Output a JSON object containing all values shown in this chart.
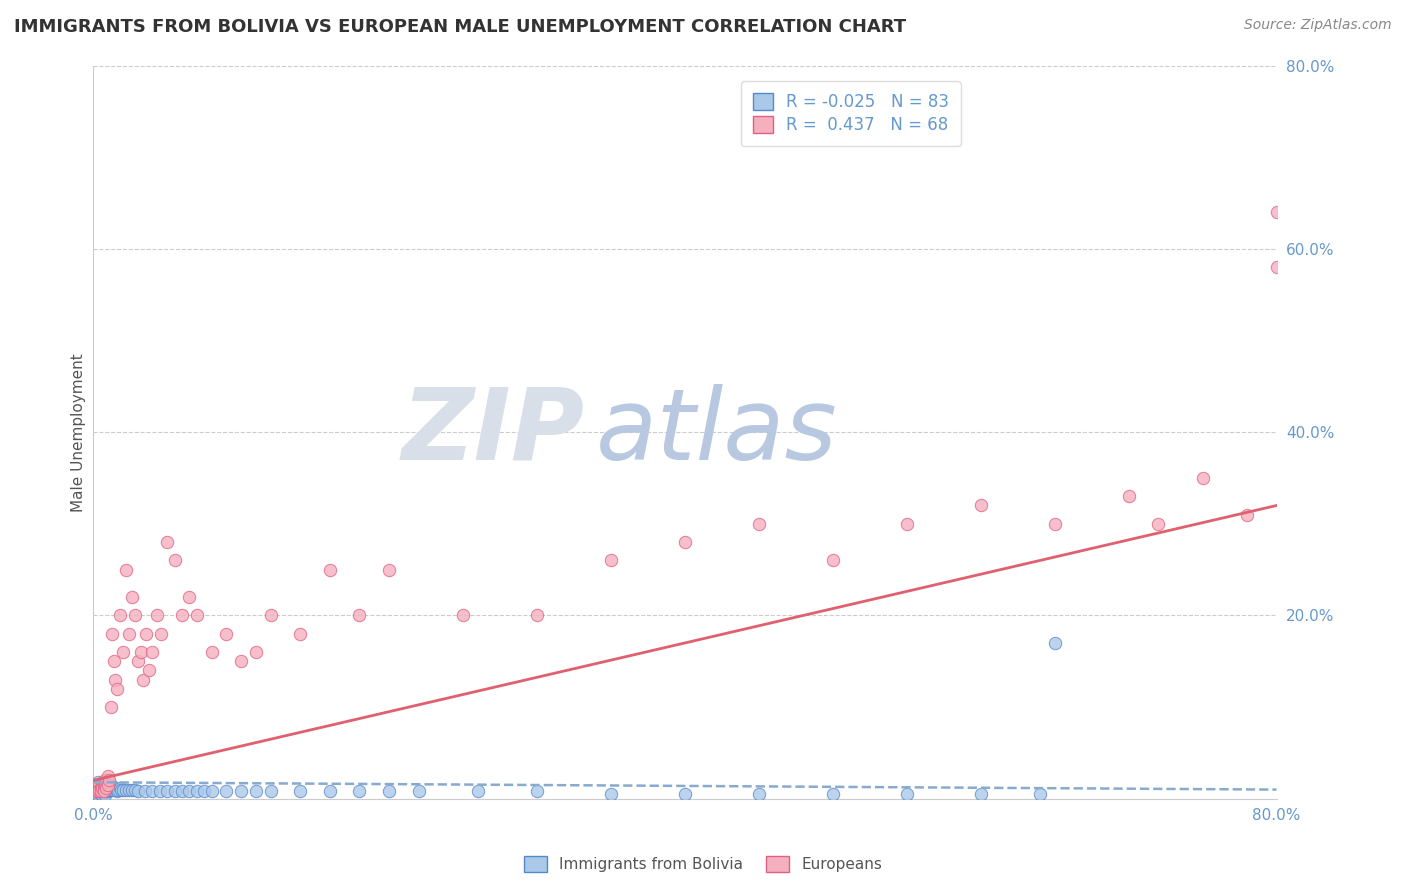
{
  "title": "IMMIGRANTS FROM BOLIVIA VS EUROPEAN MALE UNEMPLOYMENT CORRELATION CHART",
  "source": "Source: ZipAtlas.com",
  "ylabel": "Male Unemployment",
  "legend_label1": "Immigrants from Bolivia",
  "legend_label2": "Europeans",
  "r1": -0.025,
  "n1": 83,
  "r2": 0.437,
  "n2": 68,
  "xlim": [
    0.0,
    0.8
  ],
  "ylim": [
    0.0,
    0.8
  ],
  "color_bolivia_face": "#aac8e8",
  "color_bolivia_edge": "#5588cc",
  "color_european_face": "#f5b0c0",
  "color_european_edge": "#e06080",
  "color_bolivia_line": "#88aacc",
  "color_european_line": "#e06070",
  "background_color": "#ffffff",
  "grid_color": "#cccccc",
  "tick_color": "#6699cc",
  "title_color": "#333333",
  "source_color": "#888888",
  "ylabel_color": "#555555",
  "watermark_zip_color": "#d8dfe8",
  "watermark_atlas_color": "#b8c8e0",
  "bolivia_x": [
    0.001,
    0.001,
    0.002,
    0.002,
    0.002,
    0.003,
    0.003,
    0.003,
    0.003,
    0.004,
    0.004,
    0.004,
    0.004,
    0.005,
    0.005,
    0.005,
    0.005,
    0.005,
    0.006,
    0.006,
    0.006,
    0.006,
    0.007,
    0.007,
    0.007,
    0.007,
    0.007,
    0.008,
    0.008,
    0.008,
    0.008,
    0.009,
    0.009,
    0.009,
    0.01,
    0.01,
    0.01,
    0.011,
    0.011,
    0.012,
    0.012,
    0.013,
    0.014,
    0.015,
    0.016,
    0.017,
    0.018,
    0.019,
    0.02,
    0.022,
    0.024,
    0.026,
    0.028,
    0.03,
    0.035,
    0.04,
    0.045,
    0.05,
    0.055,
    0.06,
    0.065,
    0.07,
    0.075,
    0.08,
    0.09,
    0.1,
    0.11,
    0.12,
    0.14,
    0.16,
    0.18,
    0.2,
    0.22,
    0.26,
    0.3,
    0.35,
    0.4,
    0.45,
    0.5,
    0.55,
    0.6,
    0.64,
    0.65
  ],
  "bolivia_y": [
    0.008,
    0.012,
    0.01,
    0.015,
    0.005,
    0.008,
    0.012,
    0.018,
    0.004,
    0.01,
    0.015,
    0.008,
    0.006,
    0.012,
    0.008,
    0.015,
    0.01,
    0.005,
    0.01,
    0.015,
    0.008,
    0.012,
    0.01,
    0.015,
    0.008,
    0.012,
    0.006,
    0.01,
    0.015,
    0.008,
    0.004,
    0.01,
    0.015,
    0.008,
    0.012,
    0.008,
    0.01,
    0.01,
    0.015,
    0.01,
    0.015,
    0.01,
    0.01,
    0.012,
    0.008,
    0.01,
    0.012,
    0.01,
    0.01,
    0.01,
    0.01,
    0.01,
    0.01,
    0.008,
    0.008,
    0.008,
    0.008,
    0.008,
    0.008,
    0.008,
    0.008,
    0.008,
    0.008,
    0.008,
    0.008,
    0.008,
    0.008,
    0.008,
    0.008,
    0.008,
    0.008,
    0.008,
    0.008,
    0.008,
    0.008,
    0.005,
    0.005,
    0.005,
    0.005,
    0.005,
    0.005,
    0.005,
    0.17
  ],
  "european_x": [
    0.001,
    0.002,
    0.003,
    0.003,
    0.004,
    0.004,
    0.005,
    0.005,
    0.006,
    0.006,
    0.007,
    0.007,
    0.007,
    0.008,
    0.008,
    0.009,
    0.009,
    0.01,
    0.01,
    0.011,
    0.012,
    0.013,
    0.014,
    0.015,
    0.016,
    0.018,
    0.02,
    0.022,
    0.024,
    0.026,
    0.028,
    0.03,
    0.032,
    0.034,
    0.036,
    0.038,
    0.04,
    0.043,
    0.046,
    0.05,
    0.055,
    0.06,
    0.065,
    0.07,
    0.08,
    0.09,
    0.1,
    0.11,
    0.12,
    0.14,
    0.16,
    0.18,
    0.2,
    0.25,
    0.3,
    0.35,
    0.4,
    0.45,
    0.5,
    0.55,
    0.6,
    0.65,
    0.7,
    0.72,
    0.75,
    0.78,
    0.8,
    0.8
  ],
  "european_y": [
    0.01,
    0.008,
    0.012,
    0.008,
    0.015,
    0.01,
    0.012,
    0.008,
    0.015,
    0.012,
    0.015,
    0.01,
    0.008,
    0.02,
    0.015,
    0.018,
    0.012,
    0.025,
    0.015,
    0.02,
    0.1,
    0.18,
    0.15,
    0.13,
    0.12,
    0.2,
    0.16,
    0.25,
    0.18,
    0.22,
    0.2,
    0.15,
    0.16,
    0.13,
    0.18,
    0.14,
    0.16,
    0.2,
    0.18,
    0.28,
    0.26,
    0.2,
    0.22,
    0.2,
    0.16,
    0.18,
    0.15,
    0.16,
    0.2,
    0.18,
    0.25,
    0.2,
    0.25,
    0.2,
    0.2,
    0.26,
    0.28,
    0.3,
    0.26,
    0.3,
    0.32,
    0.3,
    0.33,
    0.3,
    0.35,
    0.31,
    0.64,
    0.58
  ],
  "bolivia_line_x": [
    0.0,
    0.8
  ],
  "bolivia_line_y": [
    0.018,
    0.01
  ],
  "european_line_x": [
    0.0,
    0.8
  ],
  "european_line_y": [
    0.02,
    0.32
  ]
}
